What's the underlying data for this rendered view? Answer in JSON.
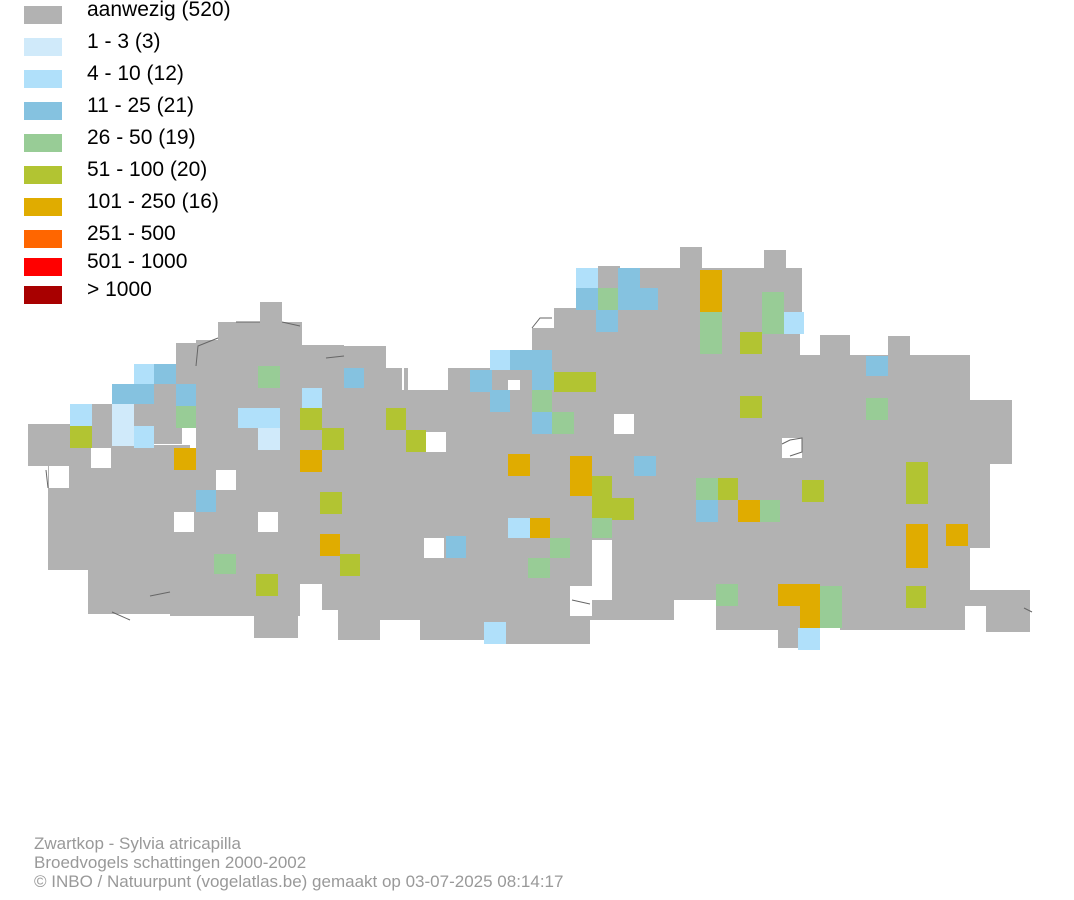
{
  "legend": {
    "items": [
      {
        "label": "aanwezig (520)",
        "color": "#b2b2b2"
      },
      {
        "label": "1 - 3 (3)",
        "color": "#d0eafa"
      },
      {
        "label": "4 - 10 (12)",
        "color": "#b0e0fa"
      },
      {
        "label": "11 - 25 (21)",
        "color": "#85c2e0"
      },
      {
        "label": "26 - 50 (19)",
        "color": "#98cc96"
      },
      {
        "label": "51 - 100 (20)",
        "color": "#b2c432"
      },
      {
        "label": "101 - 250 (16)",
        "color": "#e0ac00"
      },
      {
        "label": "251 - 500",
        "color": "#ff6600"
      },
      {
        "label": "501 - 1000",
        "color": "#ff0000"
      },
      {
        "label": "> 1000",
        "color": "#a80000"
      }
    ]
  },
  "footer": {
    "species": "Zwartkop - Sylvia atricapilla",
    "dataset": "Broedvogels schattingen 2000-2002",
    "credit": "© INBO / Natuurpunt (vogelatlas.be) gemaakt op 03-07-2025 08:14:17"
  }
}
